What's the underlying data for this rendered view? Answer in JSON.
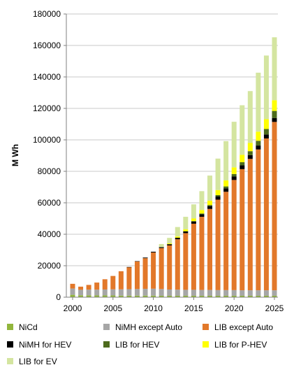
{
  "chart_data": {
    "type": "bar",
    "stacked": true,
    "title": "",
    "xlabel": "",
    "ylabel": "M Wh",
    "ylim": [
      0,
      180000
    ],
    "y_ticks": [
      "0",
      "20000",
      "40000",
      "60000",
      "80000",
      "100000",
      "120000",
      "140000",
      "160000",
      "180000"
    ],
    "x_ticks": [
      "2000",
      "2005",
      "2010",
      "2015",
      "2020",
      "2025"
    ],
    "grid": true,
    "legend_position": "bottom",
    "categories": [
      2000,
      2001,
      2002,
      2003,
      2004,
      2005,
      2006,
      2007,
      2008,
      2009,
      2010,
      2011,
      2012,
      2013,
      2014,
      2015,
      2016,
      2017,
      2018,
      2019,
      2020,
      2021,
      2022,
      2023,
      2024,
      2025
    ],
    "series": [
      {
        "name": "NiCd",
        "color": "#92b63c",
        "values": [
          1500,
          1200,
          1200,
          1100,
          1100,
          1100,
          1000,
          1000,
          1000,
          1000,
          1000,
          900,
          900,
          900,
          900,
          900,
          900,
          900,
          900,
          900,
          900,
          900,
          900,
          900,
          900,
          900
        ]
      },
      {
        "name": "NiMH except Auto",
        "color": "#a6a6a6",
        "values": [
          4000,
          3500,
          3600,
          3700,
          3800,
          3900,
          4000,
          4100,
          4200,
          4300,
          4400,
          4300,
          4000,
          3900,
          3800,
          3800,
          3700,
          3700,
          3600,
          3600,
          3600,
          3500,
          3500,
          3500,
          3500,
          3500
        ]
      },
      {
        "name": "LIB except Auto",
        "color": "#e2782a",
        "values": [
          3000,
          2000,
          3000,
          4500,
          6500,
          8500,
          11500,
          14000,
          17500,
          19500,
          23000,
          26000,
          28000,
          32000,
          36000,
          42000,
          46500,
          51500,
          57500,
          62500,
          70000,
          77000,
          83500,
          89500,
          96500,
          107000
        ]
      },
      {
        "name": "NiMH for HEV",
        "color": "#000000",
        "values": [
          0,
          0,
          0,
          0,
          0,
          0,
          0,
          100,
          200,
          400,
          500,
          600,
          800,
          1000,
          1200,
          1400,
          1600,
          1800,
          2000,
          2200,
          2300,
          2400,
          2400,
          2500,
          2500,
          2500
        ]
      },
      {
        "name": "LIB for HEV",
        "color": "#4d6b1d",
        "values": [
          0,
          0,
          0,
          0,
          0,
          0,
          0,
          0,
          0,
          0,
          0,
          0,
          0,
          0,
          0,
          300,
          500,
          700,
          900,
          1200,
          1500,
          2000,
          2500,
          3000,
          3500,
          4500
        ]
      },
      {
        "name": "LIB for P-HEV",
        "color": "#ffff00",
        "values": [
          0,
          0,
          0,
          0,
          0,
          0,
          0,
          0,
          0,
          0,
          0,
          0,
          500,
          800,
          1200,
          1600,
          2200,
          2700,
          3200,
          3800,
          4200,
          4700,
          5200,
          5800,
          6200,
          6800
        ]
      },
      {
        "name": "LIB for EV",
        "color": "#d4e5a0",
        "values": [
          0,
          0,
          0,
          0,
          0,
          0,
          0,
          0,
          0,
          0,
          0,
          2000,
          3500,
          6000,
          8000,
          9000,
          12000,
          16000,
          20000,
          25000,
          29000,
          31500,
          33000,
          37500,
          40500,
          40000
        ]
      }
    ]
  }
}
